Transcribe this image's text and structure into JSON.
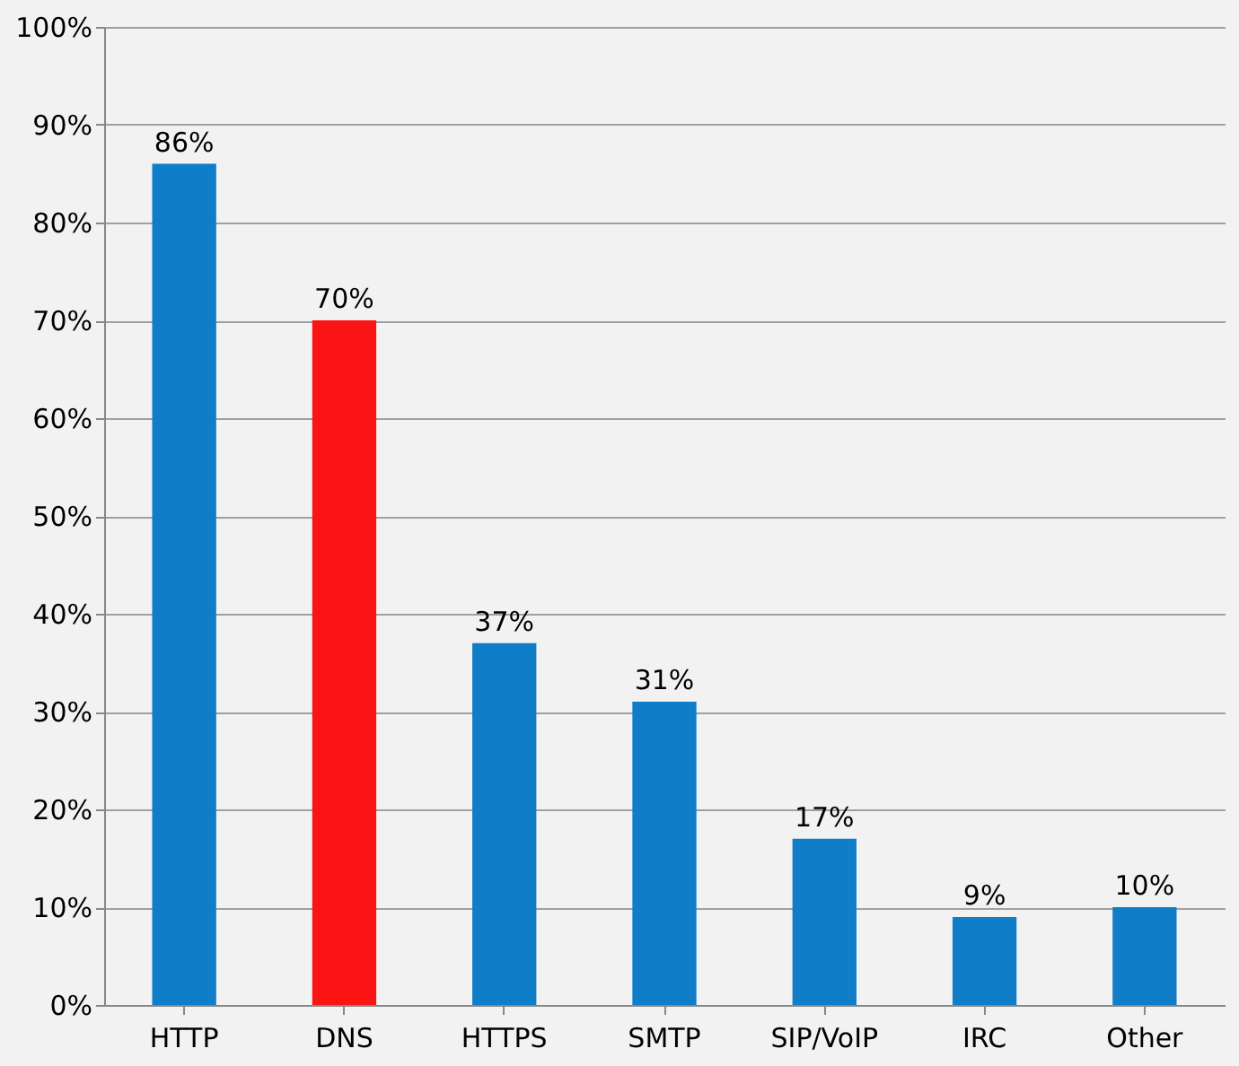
{
  "chart_data": {
    "type": "bar",
    "categories": [
      "HTTP",
      "DNS",
      "HTTPS",
      "SMTP",
      "SIP/VoIP",
      "IRC",
      "Other"
    ],
    "values": [
      86,
      70,
      37,
      31,
      17,
      9,
      10
    ],
    "colors": [
      "#0f7dc8",
      "#fa1414",
      "#0f7dc8",
      "#0f7dc8",
      "#0f7dc8",
      "#0f7dc8",
      "#0f7dc8"
    ],
    "value_labels": [
      "86%",
      "70%",
      "37%",
      "31%",
      "17%",
      "9%",
      "10%"
    ],
    "ylim": [
      0,
      100
    ],
    "yticks": [
      {
        "value": 0,
        "label": "0%"
      },
      {
        "value": 10,
        "label": "10%"
      },
      {
        "value": 20,
        "label": "20%"
      },
      {
        "value": 30,
        "label": "30%"
      },
      {
        "value": 40,
        "label": "40%"
      },
      {
        "value": 50,
        "label": "50%"
      },
      {
        "value": 60,
        "label": "60%"
      },
      {
        "value": 70,
        "label": "70%"
      },
      {
        "value": 80,
        "label": "80%"
      },
      {
        "value": 90,
        "label": "90%"
      },
      {
        "value": 100,
        "label": "100%"
      }
    ],
    "grid": "y",
    "legend": false
  }
}
